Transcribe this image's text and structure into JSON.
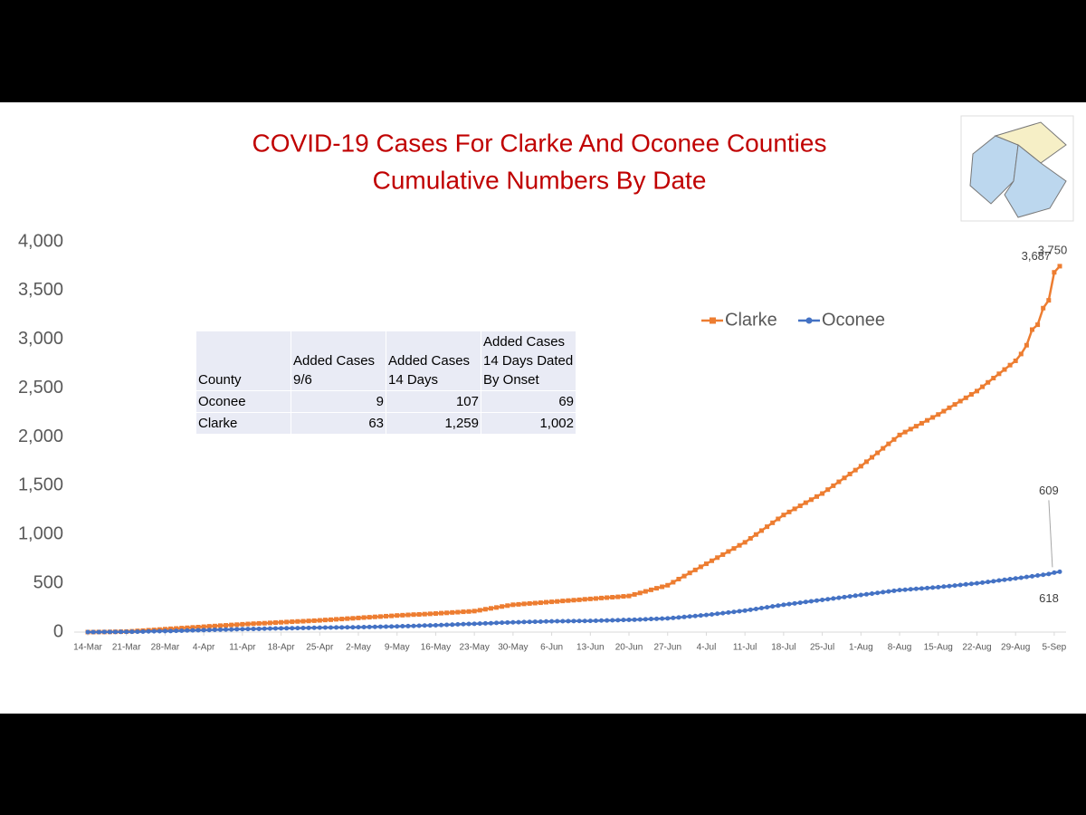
{
  "chart_data": {
    "type": "line",
    "title": "COVID-19 Cases For Clarke And Oconee Counties",
    "subtitle": "Cumulative Numbers By Date",
    "categories": [
      "14-Mar",
      null,
      null,
      null,
      null,
      null,
      null,
      "21-Mar",
      null,
      null,
      null,
      null,
      null,
      null,
      "28-Mar",
      null,
      null,
      null,
      null,
      null,
      null,
      "4-Apr",
      null,
      null,
      null,
      null,
      null,
      null,
      "11-Apr",
      null,
      null,
      null,
      null,
      null,
      null,
      "18-Apr",
      null,
      null,
      null,
      null,
      null,
      null,
      "25-Apr",
      null,
      null,
      null,
      null,
      null,
      null,
      "2-May",
      null,
      null,
      null,
      null,
      null,
      null,
      "9-May",
      null,
      null,
      null,
      null,
      null,
      null,
      "16-May",
      null,
      null,
      null,
      null,
      null,
      null,
      "23-May",
      null,
      null,
      null,
      null,
      null,
      null,
      "30-May",
      null,
      null,
      null,
      null,
      null,
      null,
      "6-Jun",
      null,
      null,
      null,
      null,
      null,
      null,
      "13-Jun",
      null,
      null,
      null,
      null,
      null,
      null,
      "20-Jun",
      null,
      null,
      null,
      null,
      null,
      null,
      "27-Jun",
      null,
      null,
      null,
      null,
      null,
      null,
      "4-Jul",
      null,
      null,
      null,
      null,
      null,
      null,
      "11-Jul",
      null,
      null,
      null,
      null,
      null,
      null,
      "18-Jul",
      null,
      null,
      null,
      null,
      null,
      null,
      "25-Jul",
      null,
      null,
      null,
      null,
      null,
      null,
      "1-Aug",
      null,
      null,
      null,
      null,
      null,
      null,
      "8-Aug",
      null,
      null,
      null,
      null,
      null,
      null,
      "15-Aug",
      null,
      null,
      null,
      null,
      null,
      null,
      "22-Aug",
      null,
      null,
      null,
      null,
      null,
      null,
      "29-Aug",
      null,
      null,
      null,
      null,
      null,
      null,
      "5-Sep",
      null
    ],
    "series": [
      {
        "name": "Clarke",
        "color": "#ed7d31",
        "marker": "square",
        "values": [
          0,
          0,
          1,
          1,
          2,
          3,
          4,
          5,
          8,
          12,
          15,
          19,
          22,
          26,
          30,
          34,
          37,
          41,
          44,
          48,
          51,
          55,
          59,
          62,
          66,
          69,
          73,
          76,
          80,
          83,
          86,
          89,
          91,
          94,
          97,
          100,
          103,
          106,
          109,
          111,
          114,
          117,
          120,
          124,
          127,
          131,
          134,
          138,
          141,
          145,
          149,
          152,
          156,
          159,
          163,
          166,
          170,
          173,
          176,
          179,
          181,
          184,
          187,
          190,
          194,
          197,
          201,
          204,
          208,
          211,
          215,
          224,
          234,
          243,
          252,
          262,
          271,
          280,
          284,
          289,
          293,
          297,
          301,
          306,
          310,
          314,
          319,
          323,
          327,
          331,
          336,
          340,
          344,
          349,
          353,
          357,
          361,
          366,
          370,
          386,
          401,
          417,
          433,
          449,
          464,
          480,
          511,
          543,
          574,
          606,
          637,
          669,
          700,
          731,
          763,
          794,
          826,
          857,
          889,
          920,
          960,
          1000,
          1040,
          1080,
          1120,
          1160,
          1200,
          1231,
          1263,
          1294,
          1326,
          1357,
          1389,
          1420,
          1460,
          1500,
          1540,
          1580,
          1620,
          1660,
          1700,
          1746,
          1791,
          1837,
          1883,
          1929,
          1974,
          2020,
          2050,
          2080,
          2110,
          2140,
          2170,
          2200,
          2230,
          2264,
          2299,
          2333,
          2367,
          2401,
          2436,
          2470,
          2514,
          2559,
          2603,
          2647,
          2691,
          2736,
          2780,
          2850,
          2940,
          3100,
          3150,
          3320,
          3400,
          3687,
          3750
        ],
        "value_labels": [
          null,
          null,
          null,
          null,
          null,
          null,
          null,
          null,
          null,
          null,
          null,
          null,
          null,
          null,
          null,
          null,
          null,
          null,
          null,
          null,
          null,
          null,
          null,
          null,
          null,
          null,
          null,
          null,
          null,
          null,
          null,
          null,
          null,
          null,
          null,
          null,
          null,
          null,
          null,
          null,
          null,
          null,
          null,
          null,
          null,
          null,
          null,
          null,
          null,
          null,
          null,
          null,
          null,
          null,
          null,
          null,
          null,
          null,
          null,
          null,
          null,
          null,
          null,
          null,
          null,
          null,
          null,
          null,
          null,
          null,
          null,
          null,
          null,
          null,
          null,
          null,
          null,
          null,
          null,
          null,
          null,
          null,
          null,
          null,
          null,
          null,
          null,
          null,
          null,
          null,
          null,
          null,
          null,
          null,
          null,
          null,
          null,
          null,
          null,
          null,
          null,
          null,
          null,
          null,
          null,
          null,
          null,
          null,
          null,
          null,
          null,
          null,
          null,
          null,
          null,
          null,
          null,
          null,
          null,
          null,
          null,
          null,
          null,
          null,
          null,
          null,
          null,
          null,
          null,
          null,
          null,
          null,
          null,
          null,
          null,
          null,
          null,
          null,
          null,
          null,
          null,
          null,
          null,
          null,
          null,
          null,
          null,
          null,
          null,
          null,
          null,
          null,
          null,
          null,
          null,
          null,
          null,
          null,
          null,
          null,
          null,
          null,
          null,
          null,
          null,
          null,
          null,
          null,
          null,
          null,
          null,
          null,
          null,
          null,
          null,
          "3,687",
          "3,750"
        ]
      },
      {
        "name": "Oconee",
        "color": "#4472c4",
        "marker": "circle",
        "values": [
          0,
          0,
          0,
          1,
          1,
          1,
          2,
          2,
          3,
          4,
          5,
          7,
          8,
          9,
          10,
          11,
          13,
          14,
          16,
          17,
          19,
          20,
          21,
          23,
          24,
          26,
          27,
          29,
          30,
          31,
          32,
          33,
          35,
          36,
          37,
          38,
          39,
          40,
          41,
          42,
          43,
          44,
          45,
          46,
          46,
          47,
          48,
          49,
          49,
          50,
          51,
          52,
          53,
          55,
          56,
          57,
          58,
          60,
          61,
          63,
          65,
          67,
          68,
          70,
          72,
          74,
          76,
          79,
          81,
          83,
          85,
          87,
          89,
          91,
          94,
          96,
          98,
          100,
          101,
          103,
          104,
          106,
          107,
          109,
          110,
          111,
          111,
          112,
          113,
          114,
          114,
          115,
          116,
          118,
          119,
          121,
          122,
          124,
          125,
          127,
          129,
          131,
          134,
          136,
          138,
          140,
          145,
          150,
          155,
          160,
          165,
          170,
          175,
          181,
          188,
          194,
          201,
          207,
          214,
          220,
          229,
          237,
          246,
          254,
          263,
          271,
          280,
          287,
          294,
          301,
          309,
          316,
          323,
          330,
          337,
          344,
          351,
          359,
          366,
          373,
          380,
          387,
          394,
          401,
          409,
          416,
          423,
          430,
          434,
          439,
          443,
          447,
          451,
          456,
          460,
          466,
          471,
          477,
          483,
          489,
          494,
          500,
          507,
          514,
          521,
          529,
          536,
          543,
          550,
          557,
          565,
          572,
          580,
          587,
          595,
          609,
          618
        ],
        "value_labels": [
          null,
          null,
          null,
          null,
          null,
          null,
          null,
          null,
          null,
          null,
          null,
          null,
          null,
          null,
          null,
          null,
          null,
          null,
          null,
          null,
          null,
          null,
          null,
          null,
          null,
          null,
          null,
          null,
          null,
          null,
          null,
          null,
          null,
          null,
          null,
          null,
          null,
          null,
          null,
          null,
          null,
          null,
          null,
          null,
          null,
          null,
          null,
          null,
          null,
          null,
          null,
          null,
          null,
          null,
          null,
          null,
          null,
          null,
          null,
          null,
          null,
          null,
          null,
          null,
          null,
          null,
          null,
          null,
          null,
          null,
          null,
          null,
          null,
          null,
          null,
          null,
          null,
          null,
          null,
          null,
          null,
          null,
          null,
          null,
          null,
          null,
          null,
          null,
          null,
          null,
          null,
          null,
          null,
          null,
          null,
          null,
          null,
          null,
          null,
          null,
          null,
          null,
          null,
          null,
          null,
          null,
          null,
          null,
          null,
          null,
          null,
          null,
          null,
          null,
          null,
          null,
          null,
          null,
          null,
          null,
          null,
          null,
          null,
          null,
          null,
          null,
          null,
          null,
          null,
          null,
          null,
          null,
          null,
          null,
          null,
          null,
          null,
          null,
          null,
          null,
          null,
          null,
          null,
          null,
          null,
          null,
          null,
          null,
          null,
          null,
          null,
          null,
          null,
          null,
          null,
          null,
          null,
          null,
          null,
          null,
          null,
          null,
          null,
          null,
          null,
          null,
          null,
          null,
          null,
          null,
          null,
          null,
          null,
          null,
          null,
          "609",
          "618"
        ]
      }
    ],
    "ylim": [
      0,
      4000
    ],
    "yticks": [
      0,
      500,
      {
        "value": 1000,
        "label": "1,000"
      },
      {
        "value": 1500,
        "label": "1,500"
      },
      {
        "value": 2000,
        "label": "2,000"
      },
      {
        "value": 2500,
        "label": "2,500"
      },
      {
        "value": 3000,
        "label": "3,000"
      },
      {
        "value": 3500,
        "label": "3,500"
      },
      {
        "value": 4000,
        "label": "4,000"
      }
    ],
    "grid": false,
    "legend": "right",
    "table": {
      "header": [
        "County",
        "Added Cases 9/6",
        "Added Cases 14 Days",
        "Added Cases 14 Days Dated By Onset"
      ],
      "rows": [
        [
          "Oconee",
          "9",
          "107",
          "69"
        ],
        [
          "Clarke",
          "63",
          "1,259",
          "1,002"
        ]
      ]
    }
  }
}
